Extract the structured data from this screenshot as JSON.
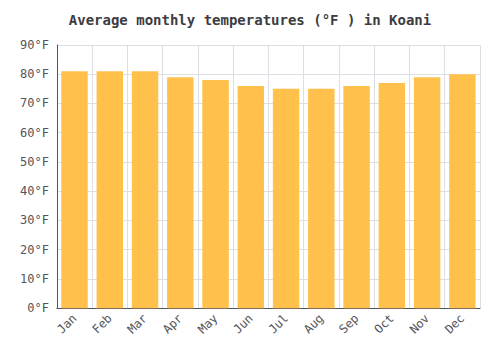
{
  "chart_data": {
    "type": "bar",
    "title": "Average monthly temperatures (°F ) in Koani",
    "categories": [
      "Jan",
      "Feb",
      "Mar",
      "Apr",
      "May",
      "Jun",
      "Jul",
      "Aug",
      "Sep",
      "Oct",
      "Nov",
      "Dec"
    ],
    "values": [
      81,
      81,
      81,
      79,
      78,
      76,
      75,
      75,
      76,
      77,
      79,
      80
    ],
    "color": "#FFC04C",
    "ylim": [
      0,
      90
    ],
    "yticks": [
      {
        "value": 0,
        "label": "0°F"
      },
      {
        "value": 10,
        "label": "10°F"
      },
      {
        "value": 20,
        "label": "20°F"
      },
      {
        "value": 30,
        "label": "30°F"
      },
      {
        "value": 40,
        "label": "40°F"
      },
      {
        "value": 50,
        "label": "50°F"
      },
      {
        "value": 60,
        "label": "60°F"
      },
      {
        "value": 70,
        "label": "70°F"
      },
      {
        "value": 80,
        "label": "80°F"
      },
      {
        "value": 90,
        "label": "90°F"
      }
    ],
    "grid": true
  }
}
